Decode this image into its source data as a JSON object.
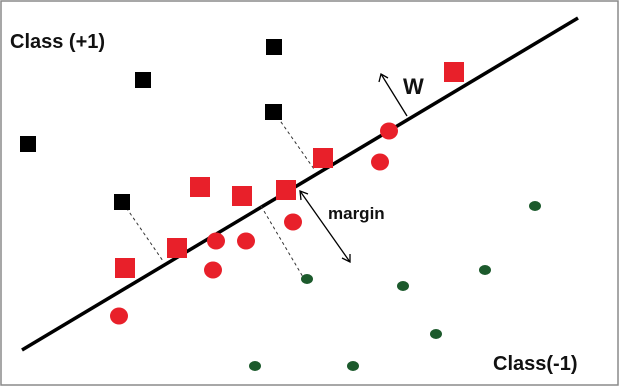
{
  "labels": {
    "class_pos": "Class (+1)",
    "class_neg": "Class(-1)",
    "weight": "W",
    "margin": "margin"
  },
  "colors": {
    "class_pos_point": "#000000",
    "support_vector": "#e8202a",
    "class_neg_point": "#1c5a2c",
    "line": "#000000",
    "border": "#8a8a8a"
  },
  "icons": {
    "class_pos_point": "square",
    "square_support_vector": "square",
    "circle_support_vector": "circle",
    "class_neg_point": "small-ellipse"
  }
}
